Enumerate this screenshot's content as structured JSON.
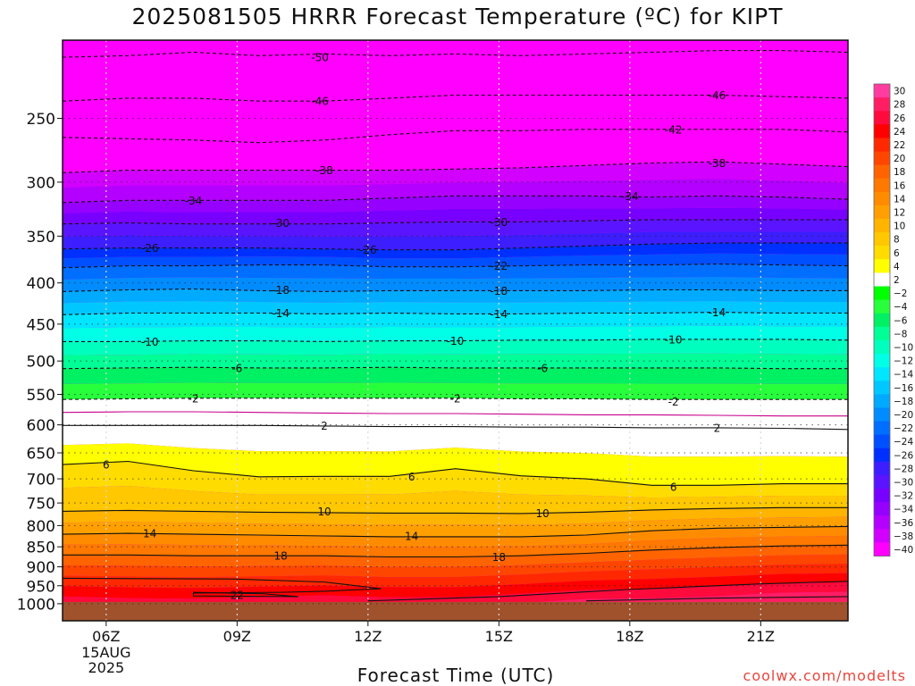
{
  "header": {
    "title": "2025081505 HRRR Forecast Temperature (ºC) for KIPT"
  },
  "footer": {
    "credit": "coolwx.com/modelts"
  },
  "chart_data": {
    "type": "heatmap",
    "title": "2025081505 HRRR Forecast Temperature (ºC) for KIPT",
    "xlabel": "Forecast Time (UTC)",
    "ylabel": "",
    "x_hours": [
      5,
      23
    ],
    "x_ticks": [
      {
        "hour": 6,
        "label": "06Z"
      },
      {
        "hour": 9,
        "label": "09Z"
      },
      {
        "hour": 12,
        "label": "12Z"
      },
      {
        "hour": 15,
        "label": "15Z"
      },
      {
        "hour": 18,
        "label": "18Z"
      },
      {
        "hour": 21,
        "label": "21Z"
      }
    ],
    "date_label": [
      "15AUG",
      "2025"
    ],
    "y_scale": "log-pressure",
    "y_ticks": [
      250,
      300,
      350,
      400,
      450,
      500,
      550,
      600,
      650,
      700,
      750,
      800,
      850,
      900,
      950,
      1000
    ],
    "y_range": [
      200,
      1050
    ],
    "surface_pressure": 995,
    "grid": true,
    "colorbar": {
      "labels": [
        30,
        28,
        26,
        24,
        22,
        20,
        18,
        16,
        14,
        12,
        10,
        8,
        6,
        4,
        2,
        -2,
        -4,
        -6,
        -8,
        -10,
        -12,
        -14,
        -16,
        -18,
        -20,
        -22,
        -24,
        -26,
        -28,
        -30,
        -32,
        -34,
        -36,
        -38,
        -40
      ],
      "colors": [
        "#ff3ca0",
        "#ff1e64",
        "#ff0a3c",
        "#ff0000",
        "#ff2800",
        "#ff4600",
        "#ff6400",
        "#ff7800",
        "#ff8c00",
        "#ffa000",
        "#ffb400",
        "#ffc800",
        "#ffdc00",
        "#ffff00",
        "#ffffff",
        "#00ff00",
        "#28ff3c",
        "#00f064",
        "#00ff96",
        "#00ffbe",
        "#00ffe6",
        "#00e6ff",
        "#00c8ff",
        "#00aaff",
        "#008cff",
        "#006eff",
        "#0050ff",
        "#0030ff",
        "#3c1eff",
        "#5a14ff",
        "#7800ff",
        "#9600ff",
        "#b400ff",
        "#d200ff",
        "#ff00ff"
      ]
    },
    "contours": [
      {
        "value": -50,
        "style": "dashed",
        "pressure": [
          210,
          209,
          207,
          209,
          208,
          209,
          208,
          209,
          208,
          207,
          206,
          206,
          207
        ]
      },
      {
        "value": -46,
        "style": "dashed",
        "pressure": [
          238,
          236,
          236,
          238,
          238,
          236,
          234,
          234,
          234,
          234,
          234,
          235,
          236
        ]
      },
      {
        "value": -42,
        "style": "dashed",
        "pressure": [
          264,
          265,
          266,
          268,
          266,
          262,
          259,
          259,
          258,
          258,
          258,
          258,
          260
        ]
      },
      {
        "value": -38,
        "style": "dashed",
        "pressure": [
          292,
          290,
          290,
          290,
          290,
          290,
          289,
          288,
          286,
          284,
          283,
          285,
          287
        ]
      },
      {
        "value": -34,
        "style": "dashed",
        "pressure": [
          318,
          316,
          316,
          316,
          316,
          314,
          312,
          312,
          312,
          313,
          312,
          313,
          315
        ]
      },
      {
        "value": -30,
        "style": "dashed",
        "pressure": [
          338,
          337,
          338,
          338,
          338,
          337,
          336,
          336,
          335,
          334,
          334,
          334,
          334
        ]
      },
      {
        "value": -26,
        "style": "dashed",
        "pressure": [
          363,
          362,
          362,
          362,
          363,
          364,
          364,
          362,
          360,
          358,
          357,
          357,
          357
        ]
      },
      {
        "value": -22,
        "style": "dashed",
        "pressure": [
          383,
          381,
          381,
          380,
          380,
          382,
          382,
          381,
          380,
          380,
          379,
          380,
          381
        ]
      },
      {
        "value": -18,
        "style": "dashed",
        "pressure": [
          410,
          408,
          407,
          409,
          410,
          409,
          409,
          409,
          409,
          408,
          408,
          409,
          409
        ]
      },
      {
        "value": -14,
        "style": "dashed",
        "pressure": [
          438,
          436,
          436,
          436,
          437,
          436,
          437,
          437,
          436,
          436,
          435,
          436,
          436
        ]
      },
      {
        "value": -10,
        "style": "dashed",
        "pressure": [
          473,
          473,
          472,
          472,
          473,
          472,
          472,
          471,
          471,
          470,
          470,
          470,
          471
        ]
      },
      {
        "value": -6,
        "style": "dashed",
        "pressure": [
          511,
          510,
          509,
          510,
          510,
          509,
          510,
          510,
          510,
          510,
          510,
          511,
          511
        ]
      },
      {
        "value": -2,
        "style": "dashed",
        "pressure": [
          558,
          557,
          556,
          556,
          556,
          556,
          556,
          557,
          557,
          558,
          558,
          558,
          558
        ]
      },
      {
        "value": 0,
        "style": "solid",
        "color": "#c8008c",
        "pressure": [
          579,
          578,
          578,
          579,
          580,
          581,
          581,
          582,
          583,
          583,
          584,
          585,
          585
        ]
      },
      {
        "value": 2,
        "style": "solid",
        "pressure": [
          601,
          601,
          601,
          601,
          602,
          603,
          603,
          604,
          604,
          605,
          605,
          606,
          608
        ]
      },
      {
        "value": 6,
        "style": "solid",
        "pressure": [
          672,
          666,
          684,
          696,
          695,
          695,
          680,
          694,
          700,
          713,
          713,
          710,
          710
        ]
      },
      {
        "value": 10,
        "style": "solid",
        "pressure": [
          768,
          766,
          768,
          770,
          771,
          772,
          772,
          773,
          770,
          765,
          762,
          760,
          760
        ]
      },
      {
        "value": 14,
        "style": "solid",
        "pressure": [
          820,
          818,
          820,
          822,
          824,
          826,
          826,
          826,
          822,
          812,
          806,
          804,
          802
        ]
      },
      {
        "value": 18,
        "style": "solid",
        "pressure": [
          870,
          870,
          872,
          872,
          872,
          875,
          875,
          872,
          866,
          858,
          852,
          848,
          846
        ]
      }
    ],
    "labels": [
      {
        "text": "-50",
        "hour": 10.9,
        "p": 210
      },
      {
        "text": "-46",
        "hour": 10.9,
        "p": 238
      },
      {
        "text": "-46",
        "hour": 20.0,
        "p": 234
      },
      {
        "text": "-42",
        "hour": 19.0,
        "p": 258
      },
      {
        "text": "-38",
        "hour": 11.0,
        "p": 290
      },
      {
        "text": "-38",
        "hour": 20.0,
        "p": 284
      },
      {
        "text": "-34",
        "hour": 8.0,
        "p": 316
      },
      {
        "text": "-34",
        "hour": 18.0,
        "p": 312
      },
      {
        "text": "-30",
        "hour": 10.0,
        "p": 337
      },
      {
        "text": "-30",
        "hour": 15.0,
        "p": 336
      },
      {
        "text": "-26",
        "hour": 7.0,
        "p": 362
      },
      {
        "text": "-26",
        "hour": 12.0,
        "p": 364
      },
      {
        "text": "-22",
        "hour": 15.0,
        "p": 381
      },
      {
        "text": "-18",
        "hour": 10.0,
        "p": 408
      },
      {
        "text": "-18",
        "hour": 15.0,
        "p": 409
      },
      {
        "text": "-14",
        "hour": 10.0,
        "p": 436
      },
      {
        "text": "-14",
        "hour": 15.0,
        "p": 437
      },
      {
        "text": "-14",
        "hour": 20.0,
        "p": 435
      },
      {
        "text": "-10",
        "hour": 7.0,
        "p": 473
      },
      {
        "text": "-10",
        "hour": 14.0,
        "p": 472
      },
      {
        "text": "-10",
        "hour": 19.0,
        "p": 470
      },
      {
        "text": "-6",
        "hour": 9.0,
        "p": 510
      },
      {
        "text": "-6",
        "hour": 16.0,
        "p": 510
      },
      {
        "text": "-2",
        "hour": 8.0,
        "p": 556
      },
      {
        "text": "-2",
        "hour": 14.0,
        "p": 556
      },
      {
        "text": "-2",
        "hour": 19.0,
        "p": 561
      },
      {
        "text": "2",
        "hour": 11.0,
        "p": 601
      },
      {
        "text": "2",
        "hour": 20.0,
        "p": 605
      },
      {
        "text": "6",
        "hour": 6.0,
        "p": 672
      },
      {
        "text": "6",
        "hour": 13.0,
        "p": 695
      },
      {
        "text": "6",
        "hour": 19.0,
        "p": 716
      },
      {
        "text": "10",
        "hour": 11.0,
        "p": 768
      },
      {
        "text": "10",
        "hour": 16.0,
        "p": 772
      },
      {
        "text": "14",
        "hour": 7.0,
        "p": 818
      },
      {
        "text": "14",
        "hour": 13.0,
        "p": 824
      },
      {
        "text": "18",
        "hour": 10.0,
        "p": 872
      },
      {
        "text": "18",
        "hour": 15.0,
        "p": 875
      },
      {
        "text": "22",
        "hour": 9.0,
        "p": 975
      }
    ]
  }
}
